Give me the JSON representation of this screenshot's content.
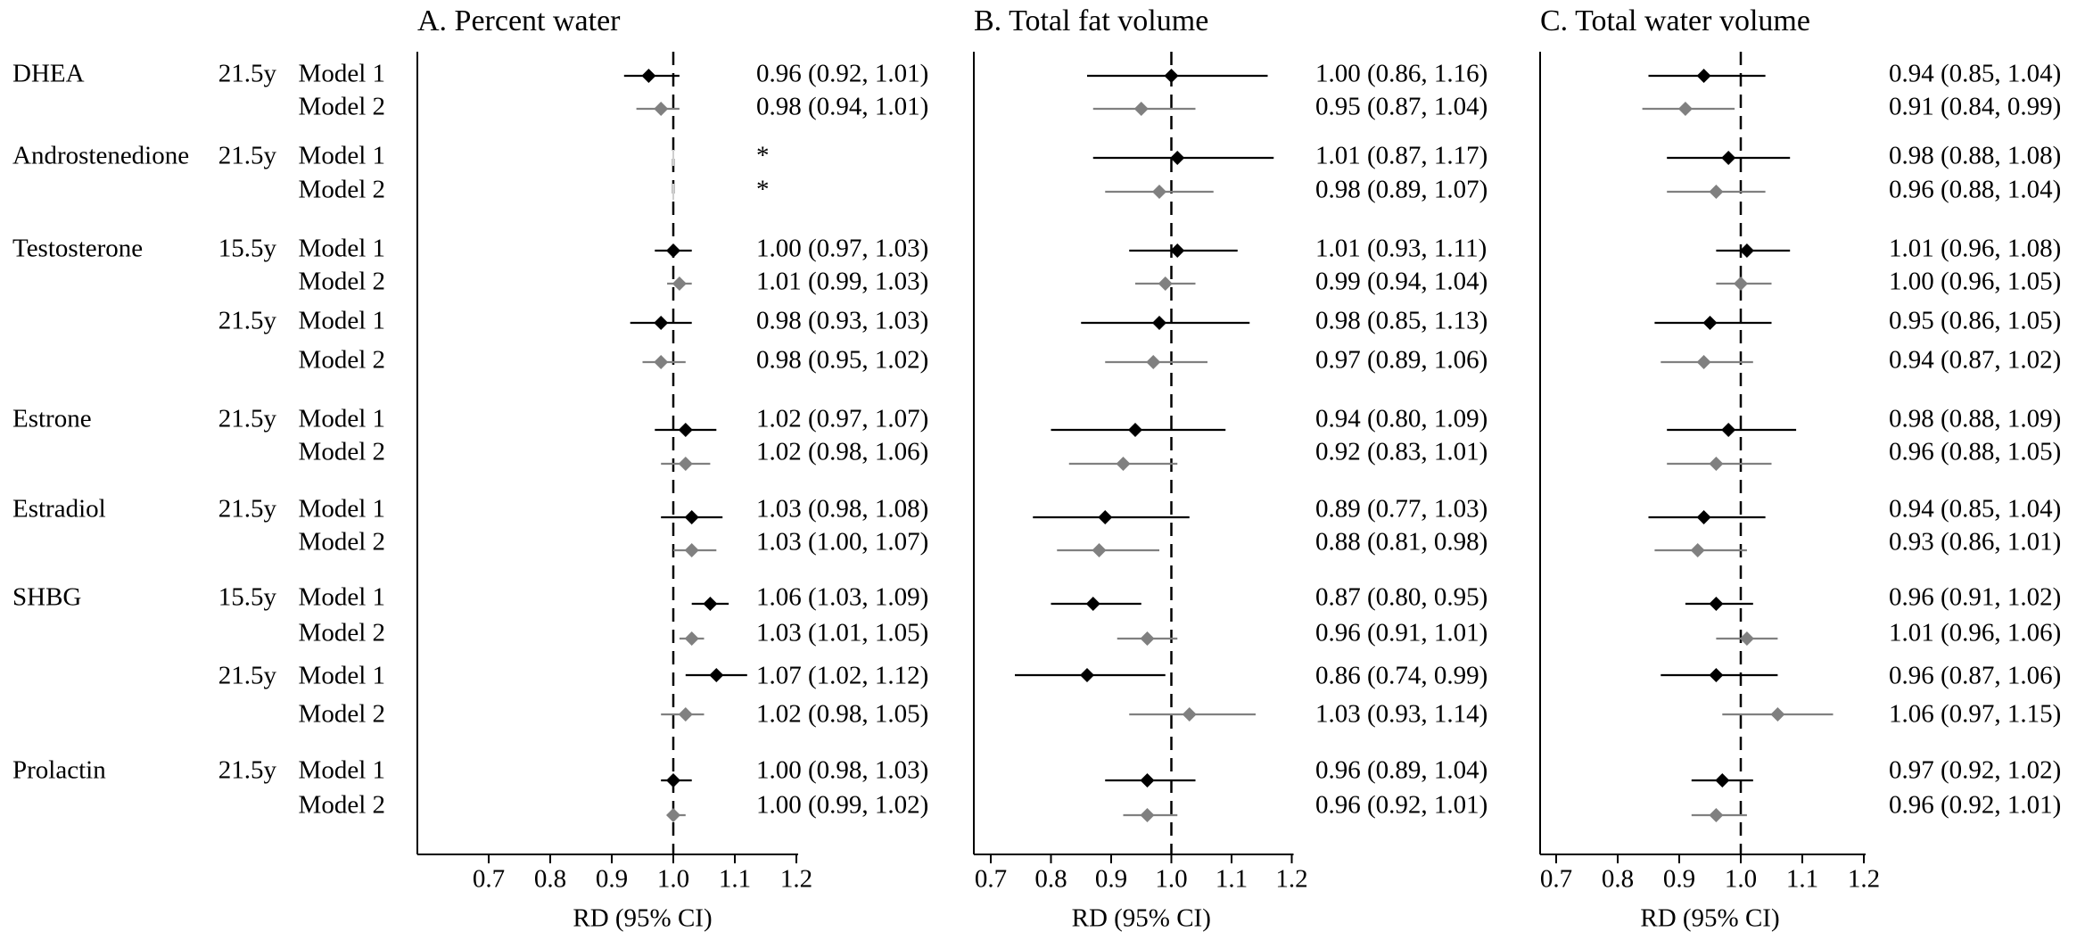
{
  "chart_data": [
    {
      "type": "forest",
      "title": "A. Percent water",
      "xlabel": "RD (95% CI)",
      "xlim": [
        0.68,
        1.22
      ],
      "xticks": [
        0.7,
        0.8,
        0.9,
        1.0,
        1.1,
        1.2
      ],
      "tick_labels": [
        "0.7",
        "0.8",
        "0.9",
        "1.0",
        "1.1",
        "1.2"
      ],
      "reference_line": 1.0,
      "points": [
        {
          "est": 0.96,
          "lo": 0.92,
          "hi": 1.01,
          "label": "0.96 (0.92, 1.01)"
        },
        {
          "est": 0.98,
          "lo": 0.94,
          "hi": 1.01,
          "label": "0.98 (0.94, 1.01)"
        },
        {
          "est": null,
          "lo": null,
          "hi": null,
          "label": "*"
        },
        {
          "est": null,
          "lo": null,
          "hi": null,
          "label": "*"
        },
        {
          "est": 1.0,
          "lo": 0.97,
          "hi": 1.03,
          "label": "1.00 (0.97, 1.03)"
        },
        {
          "est": 1.01,
          "lo": 0.99,
          "hi": 1.03,
          "label": "1.01 (0.99, 1.03)"
        },
        {
          "est": 0.98,
          "lo": 0.93,
          "hi": 1.03,
          "label": "0.98 (0.93, 1.03)"
        },
        {
          "est": 0.98,
          "lo": 0.95,
          "hi": 1.02,
          "label": "0.98 (0.95, 1.02)"
        },
        {
          "est": 1.02,
          "lo": 0.97,
          "hi": 1.07,
          "label": "1.02 (0.97, 1.07)"
        },
        {
          "est": 1.02,
          "lo": 0.98,
          "hi": 1.06,
          "label": "1.02 (0.98, 1.06)"
        },
        {
          "est": 1.03,
          "lo": 0.98,
          "hi": 1.08,
          "label": "1.03 (0.98, 1.08)"
        },
        {
          "est": 1.03,
          "lo": 1.0,
          "hi": 1.07,
          "label": "1.03 (1.00, 1.07)"
        },
        {
          "est": 1.06,
          "lo": 1.03,
          "hi": 1.09,
          "label": "1.06 (1.03, 1.09)"
        },
        {
          "est": 1.03,
          "lo": 1.01,
          "hi": 1.05,
          "label": "1.03 (1.01, 1.05)"
        },
        {
          "est": 1.07,
          "lo": 1.02,
          "hi": 1.12,
          "label": "1.07 (1.02, 1.12)"
        },
        {
          "est": 1.02,
          "lo": 0.98,
          "hi": 1.05,
          "label": "1.02 (0.98, 1.05)"
        },
        {
          "est": 1.0,
          "lo": 0.98,
          "hi": 1.03,
          "label": "1.00 (0.98, 1.03)"
        },
        {
          "est": 1.0,
          "lo": 0.99,
          "hi": 1.02,
          "label": "1.00 (0.99, 1.02)"
        }
      ]
    },
    {
      "type": "forest",
      "title": "B. Total fat volume",
      "xlabel": "RD (95% CI)",
      "xlim": [
        0.68,
        1.22
      ],
      "xticks": [
        0.7,
        0.8,
        0.9,
        1.0,
        1.1,
        1.2
      ],
      "tick_labels": [
        "0.7",
        "0.8",
        "0.9",
        "1.0",
        "1.1",
        "1.2"
      ],
      "reference_line": 1.0,
      "points": [
        {
          "est": 1.0,
          "lo": 0.86,
          "hi": 1.16,
          "label": "1.00 (0.86, 1.16)"
        },
        {
          "est": 0.95,
          "lo": 0.87,
          "hi": 1.04,
          "label": "0.95 (0.87, 1.04)"
        },
        {
          "est": 1.01,
          "lo": 0.87,
          "hi": 1.17,
          "label": "1.01 (0.87, 1.17)"
        },
        {
          "est": 0.98,
          "lo": 0.89,
          "hi": 1.07,
          "label": "0.98 (0.89, 1.07)"
        },
        {
          "est": 1.01,
          "lo": 0.93,
          "hi": 1.11,
          "label": "1.01 (0.93, 1.11)"
        },
        {
          "est": 0.99,
          "lo": 0.94,
          "hi": 1.04,
          "label": "0.99 (0.94, 1.04)"
        },
        {
          "est": 0.98,
          "lo": 0.85,
          "hi": 1.13,
          "label": "0.98 (0.85, 1.13)"
        },
        {
          "est": 0.97,
          "lo": 0.89,
          "hi": 1.06,
          "label": "0.97 (0.89, 1.06)"
        },
        {
          "est": 0.94,
          "lo": 0.8,
          "hi": 1.09,
          "label": "0.94 (0.80, 1.09)"
        },
        {
          "est": 0.92,
          "lo": 0.83,
          "hi": 1.01,
          "label": "0.92 (0.83, 1.01)"
        },
        {
          "est": 0.89,
          "lo": 0.77,
          "hi": 1.03,
          "label": "0.89 (0.77, 1.03)"
        },
        {
          "est": 0.88,
          "lo": 0.81,
          "hi": 0.98,
          "label": "0.88 (0.81, 0.98)"
        },
        {
          "est": 0.87,
          "lo": 0.8,
          "hi": 0.95,
          "label": "0.87 (0.80, 0.95)"
        },
        {
          "est": 0.96,
          "lo": 0.91,
          "hi": 1.01,
          "label": "0.96 (0.91, 1.01)"
        },
        {
          "est": 0.86,
          "lo": 0.74,
          "hi": 0.99,
          "label": "0.86 (0.74, 0.99)"
        },
        {
          "est": 1.03,
          "lo": 0.93,
          "hi": 1.14,
          "label": "1.03 (0.93, 1.14)"
        },
        {
          "est": 0.96,
          "lo": 0.89,
          "hi": 1.04,
          "label": "0.96 (0.89, 1.04)"
        },
        {
          "est": 0.96,
          "lo": 0.92,
          "hi": 1.01,
          "label": "0.96 (0.92, 1.01)"
        }
      ]
    },
    {
      "type": "forest",
      "title": "C. Total water volume",
      "xlabel": "RD (95% CI)",
      "xlim": [
        0.68,
        1.22
      ],
      "xticks": [
        0.7,
        0.8,
        0.9,
        1.0,
        1.1,
        1.2
      ],
      "tick_labels": [
        "0.7",
        "0.8",
        "0.9",
        "1.0",
        "1.1",
        "1.2"
      ],
      "reference_line": 1.0,
      "points": [
        {
          "est": 0.94,
          "lo": 0.85,
          "hi": 1.04,
          "label": "0.94 (0.85, 1.04)"
        },
        {
          "est": 0.91,
          "lo": 0.84,
          "hi": 0.99,
          "label": "0.91 (0.84, 0.99)"
        },
        {
          "est": 0.98,
          "lo": 0.88,
          "hi": 1.08,
          "label": "0.98 (0.88, 1.08)"
        },
        {
          "est": 0.96,
          "lo": 0.88,
          "hi": 1.04,
          "label": "0.96 (0.88, 1.04)"
        },
        {
          "est": 1.01,
          "lo": 0.96,
          "hi": 1.08,
          "label": "1.01 (0.96, 1.08)"
        },
        {
          "est": 1.0,
          "lo": 0.96,
          "hi": 1.05,
          "label": "1.00 (0.96, 1.05)"
        },
        {
          "est": 0.95,
          "lo": 0.86,
          "hi": 1.05,
          "label": "0.95 (0.86, 1.05)"
        },
        {
          "est": 0.94,
          "lo": 0.87,
          "hi": 1.02,
          "label": "0.94 (0.87, 1.02)"
        },
        {
          "est": 0.98,
          "lo": 0.88,
          "hi": 1.09,
          "label": "0.98 (0.88, 1.09)"
        },
        {
          "est": 0.96,
          "lo": 0.88,
          "hi": 1.05,
          "label": "0.96 (0.88, 1.05)"
        },
        {
          "est": 0.94,
          "lo": 0.85,
          "hi": 1.04,
          "label": "0.94 (0.85, 1.04)"
        },
        {
          "est": 0.93,
          "lo": 0.86,
          "hi": 1.01,
          "label": "0.93 (0.86, 1.01)"
        },
        {
          "est": 0.96,
          "lo": 0.91,
          "hi": 1.02,
          "label": "0.96 (0.91, 1.02)"
        },
        {
          "est": 1.01,
          "lo": 0.96,
          "hi": 1.06,
          "label": "1.01 (0.96, 1.06)"
        },
        {
          "est": 0.96,
          "lo": 0.87,
          "hi": 1.06,
          "label": "0.96 (0.87, 1.06)"
        },
        {
          "est": 1.06,
          "lo": 0.97,
          "hi": 1.15,
          "label": "1.06 (0.97, 1.15)"
        },
        {
          "est": 0.97,
          "lo": 0.92,
          "hi": 1.02,
          "label": "0.97 (0.92, 1.02)"
        },
        {
          "est": 0.96,
          "lo": 0.92,
          "hi": 1.01,
          "label": "0.96 (0.92, 1.01)"
        }
      ]
    }
  ],
  "rows": [
    {
      "hormone": "DHEA",
      "age": "21.5y",
      "model": "Model 1"
    },
    {
      "hormone": "",
      "age": "",
      "model": "Model 2"
    },
    {
      "hormone": "Androstenedione",
      "age": "21.5y",
      "model": "Model 1"
    },
    {
      "hormone": "",
      "age": "",
      "model": "Model 2"
    },
    {
      "hormone": "Testosterone",
      "age": "15.5y",
      "model": "Model 1"
    },
    {
      "hormone": "",
      "age": "",
      "model": "Model 2"
    },
    {
      "hormone": "",
      "age": "21.5y",
      "model": "Model 1"
    },
    {
      "hormone": "",
      "age": "",
      "model": "Model 2"
    },
    {
      "hormone": "Estrone",
      "age": "21.5y",
      "model": "Model 1"
    },
    {
      "hormone": "",
      "age": "",
      "model": "Model 2"
    },
    {
      "hormone": "Estradiol",
      "age": "21.5y",
      "model": "Model 1"
    },
    {
      "hormone": "",
      "age": "",
      "model": "Model 2"
    },
    {
      "hormone": "SHBG",
      "age": "15.5y",
      "model": "Model 1"
    },
    {
      "hormone": "",
      "age": "",
      "model": "Model 2"
    },
    {
      "hormone": "",
      "age": "21.5y",
      "model": "Model 1"
    },
    {
      "hormone": "",
      "age": "",
      "model": "Model 2"
    },
    {
      "hormone": "Prolactin",
      "age": "21.5y",
      "model": "Model 1"
    },
    {
      "hormone": "",
      "age": "",
      "model": "Model 2"
    }
  ],
  "colors": {
    "model1": "#000000",
    "model2": "#808080",
    "axis": "#000000"
  }
}
